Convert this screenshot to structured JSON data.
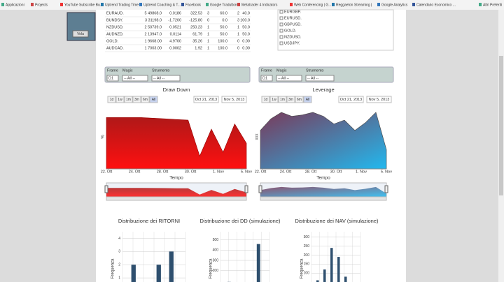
{
  "bookmarks": [
    "Applicazioni",
    "Projects",
    "YouTube Subscribe Bu...",
    "Uptrend Trading Time",
    "Uptrend Coaching & T...",
    "Facebook",
    "Google Traduttore",
    "Metatrader 4 Indicators",
    "Web Conferencing | G...",
    "Reggaeton Streaming |",
    "Google Analytics",
    "Calendario Economico ...",
    "Altri Preferiti"
  ],
  "widget": {
    "button": "Vola"
  },
  "positions_table": {
    "rows": [
      [
        "EURAUD.",
        "5 49868.0",
        "0.0186",
        "322.53",
        "3",
        "60.0",
        "2",
        "40.0"
      ],
      [
        "BUNDSY.",
        "3 31198.0",
        "-1.7200",
        "-125.80",
        "0",
        "0.0",
        "3",
        "100.0"
      ],
      [
        "NZDUSD.",
        "2 50739.0",
        "0.0521",
        "250.23",
        "1",
        "50.0",
        "1",
        "50.0"
      ],
      [
        "AUDNZD.",
        "2 13947.0",
        "0.0114",
        "61.79",
        "1",
        "50.0",
        "1",
        "50.0"
      ],
      [
        "GOLD.",
        "1 9668.00",
        "4.9700",
        "35.26",
        "1",
        "100.0",
        "0",
        "0.00"
      ],
      [
        "AUDCAD.",
        "1 7003.00",
        "0.0002",
        "1.92",
        "1",
        "100.0",
        "0",
        "0.00"
      ]
    ]
  },
  "symbols": [
    "EURGBP.",
    "EURUSD.",
    "GBPUSD.",
    "GOLD.",
    "NZDUSD.",
    "USDJPY."
  ],
  "panels": [
    {
      "filters": [
        "Frame",
        "Magic",
        "Strumento"
      ],
      "selects": [
        "D1",
        "-- All --",
        "-- All --"
      ],
      "title": "Draw Down",
      "ranges": [
        "1d",
        "1w",
        "1m",
        "3m",
        "6m",
        "All"
      ],
      "dates": [
        "Oct 21, 2013",
        "Nov 5, 2013"
      ],
      "x_labels": [
        "22. Ott",
        "24. Ott",
        "28. Ott",
        "30. Ott",
        "1. Nov",
        "5. Nov"
      ],
      "x_title": "Tempo",
      "y_title": "%",
      "ylim": [
        0,
        100
      ],
      "values": [
        80,
        80,
        80,
        80,
        79,
        78,
        77,
        76,
        20,
        62,
        26,
        70,
        40
      ]
    },
    {
      "filters": [
        "Frame",
        "Magic",
        "Strumento"
      ],
      "selects": [
        "D1",
        "-- All --",
        "-- All --"
      ],
      "title": "Leverage",
      "ranges": [
        "1d",
        "1w",
        "1m",
        "3m",
        "6m",
        "All"
      ],
      "dates": [
        "Oct 21, 2013",
        "Nov 5, 2013"
      ],
      "x_labels": [
        "22. Ott",
        "24. Ott",
        "28. Ott",
        "30. Ott",
        "1. Nov",
        "5. Nov"
      ],
      "x_title": "Tempo",
      "y_title": "xxx",
      "ylim": [
        0,
        100
      ],
      "values": [
        60,
        78,
        88,
        82,
        84,
        88,
        82,
        70,
        76,
        60,
        72,
        88,
        30
      ]
    }
  ],
  "histograms": [
    {
      "title": "Distribuzione dei RITORNI",
      "y_title": "Frequenza",
      "ylim": [
        0,
        4.5
      ],
      "yticks": [
        1,
        2,
        3,
        4
      ],
      "values": [
        2,
        0,
        2,
        3
      ]
    },
    {
      "title": "Distribuzione dei DD (simulazione)",
      "y_title": "Frequenza",
      "ylim": [
        0,
        580
      ],
      "yticks": [
        200,
        300,
        400,
        500
      ],
      "values": [
        90,
        0,
        0,
        460
      ]
    },
    {
      "title": "Distribuzione dei NAV (simulazione)",
      "y_title": "Frequenza",
      "ylim": [
        0,
        330
      ],
      "yticks": [
        100,
        150,
        200,
        250,
        300
      ],
      "values": [
        60,
        120,
        240,
        190,
        80,
        40
      ]
    }
  ]
}
